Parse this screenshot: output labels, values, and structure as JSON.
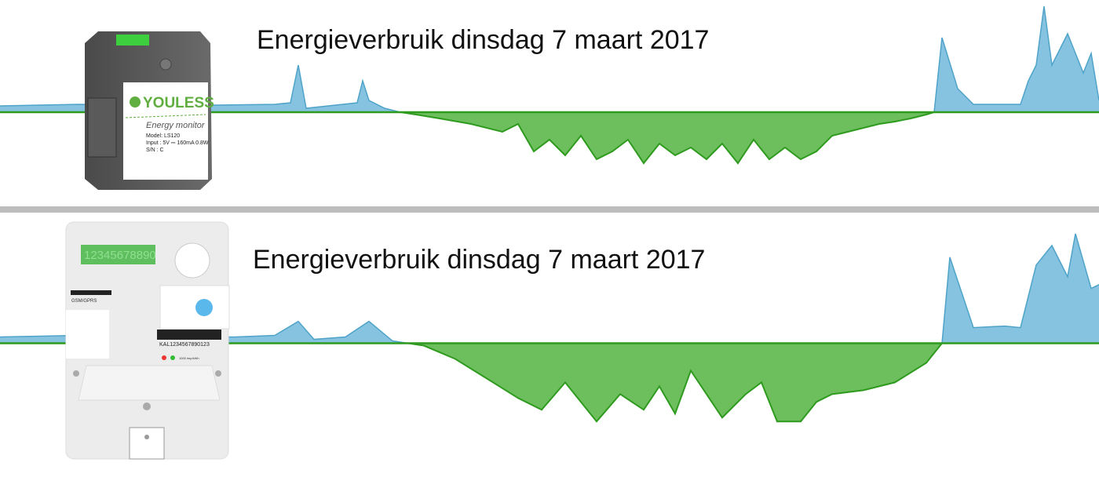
{
  "chart_data": [
    {
      "type": "area",
      "title": "Energieverbruik dinsdag 7 maart 2017",
      "x": [
        0,
        100,
        200,
        350,
        370,
        380,
        390,
        455,
        462,
        470,
        490,
        510,
        530,
        560,
        600,
        640,
        660,
        680,
        700,
        720,
        740,
        760,
        780,
        800,
        820,
        840,
        860,
        880,
        900,
        920,
        940,
        960,
        980,
        1000,
        1020,
        1040,
        1060,
        1080,
        1100,
        1120,
        1140,
        1160,
        1180,
        1190,
        1200,
        1220,
        1240,
        1260,
        1280,
        1300,
        1310,
        1320,
        1330,
        1340,
        1360,
        1380,
        1390,
        1400
      ],
      "values": [
        8,
        10,
        8,
        10,
        12,
        60,
        5,
        12,
        40,
        15,
        5,
        0,
        -3,
        -8,
        -15,
        -25,
        -15,
        -50,
        -35,
        -55,
        -30,
        -60,
        -50,
        -35,
        -65,
        -40,
        -55,
        -45,
        -60,
        -40,
        -65,
        -35,
        -60,
        -45,
        -60,
        -50,
        -30,
        -25,
        -20,
        -15,
        -12,
        -8,
        -3,
        0,
        95,
        30,
        10,
        10,
        10,
        10,
        40,
        60,
        135,
        60,
        100,
        50,
        75,
        15
      ],
      "xlim": [
        0,
        1400
      ],
      "ylim": [
        -119,
        143
      ],
      "colors": {
        "positive": "#86c3e0",
        "negative": "#6dbf5e",
        "line_positive": "#4fa3c9",
        "line_negative": "#2e9a1e"
      }
    },
    {
      "type": "area",
      "title": "Energieverbruik dinsdag 7 maart 2017",
      "x": [
        0,
        100,
        200,
        300,
        350,
        380,
        400,
        440,
        470,
        500,
        520,
        540,
        580,
        620,
        660,
        690,
        720,
        760,
        790,
        820,
        840,
        860,
        880,
        920,
        950,
        970,
        990,
        1020,
        1040,
        1060,
        1100,
        1140,
        1180,
        1200,
        1210,
        1240,
        1280,
        1300,
        1320,
        1340,
        1360,
        1370,
        1390,
        1400
      ],
      "values": [
        8,
        10,
        8,
        8,
        10,
        28,
        5,
        8,
        28,
        3,
        0,
        -3,
        -20,
        -45,
        -70,
        -85,
        -50,
        -100,
        -65,
        -85,
        -55,
        -90,
        -35,
        -95,
        -65,
        -50,
        -100,
        -100,
        -75,
        -65,
        -60,
        -50,
        -25,
        0,
        110,
        20,
        22,
        20,
        100,
        125,
        85,
        140,
        70,
        75
      ],
      "xlim": [
        0,
        1400
      ],
      "ylim": [
        -185,
        167
      ],
      "colors": {
        "positive": "#86c3e0",
        "negative": "#6dbf5e",
        "line_positive": "#4fa3c9",
        "line_negative": "#2e9a1e"
      }
    }
  ],
  "device_top": {
    "brand": "YOULESS",
    "subtitle": "Energy monitor",
    "model": "Model: LS120",
    "input": "Input : 5V ⎓ 160mA 0.8W",
    "sn": "S/N    : C"
  },
  "device_bottom": {
    "display": "12345678890",
    "network": "GSM/GPRS",
    "barcode_text": "KAL1234567890123",
    "pulse": "1000 imp/kWh"
  }
}
